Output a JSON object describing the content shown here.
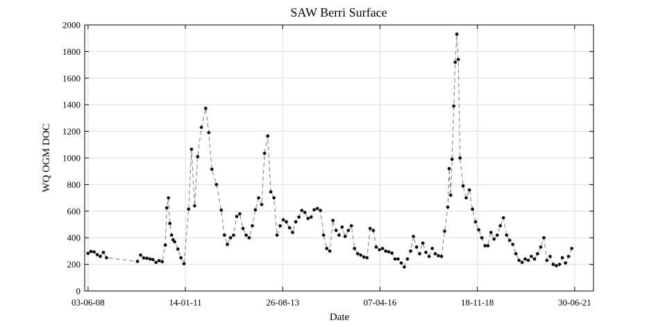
{
  "chart_data": {
    "type": "line",
    "title": "SAW Berri Surface",
    "xlabel": "Date",
    "ylabel": "WQ OGM DOC",
    "x_is_date": true,
    "xlim": [
      "2008-05-01",
      "2022-01-01"
    ],
    "ylim": [
      0,
      2000
    ],
    "grid": true,
    "line_style": "dashed",
    "marker": "filled-circle",
    "x_ticks": [
      {
        "date": "2008-06-03",
        "label": "03-06-08"
      },
      {
        "date": "2011-01-14",
        "label": "14-01-11"
      },
      {
        "date": "2013-08-26",
        "label": "26-08-13"
      },
      {
        "date": "2016-04-07",
        "label": "07-04-16"
      },
      {
        "date": "2018-11-18",
        "label": "18-11-18"
      },
      {
        "date": "2021-06-30",
        "label": "30-06-21"
      }
    ],
    "y_ticks": [
      0,
      200,
      400,
      600,
      800,
      1000,
      1200,
      1400,
      1600,
      1800,
      2000
    ],
    "series": [
      {
        "color": "#000000",
        "points": [
          [
            "2008-06-03",
            283
          ],
          [
            "2008-07-01",
            297
          ],
          [
            "2008-08-01",
            294
          ],
          [
            "2008-09-01",
            273
          ],
          [
            "2008-10-01",
            260
          ],
          [
            "2008-11-01",
            290
          ],
          [
            "2008-12-01",
            250
          ],
          [
            "2009-10-01",
            222
          ],
          [
            "2009-11-01",
            270
          ],
          [
            "2009-12-01",
            248
          ],
          [
            "2010-01-01",
            246
          ],
          [
            "2010-02-01",
            240
          ],
          [
            "2010-03-01",
            236
          ],
          [
            "2010-04-01",
            215
          ],
          [
            "2010-05-01",
            228
          ],
          [
            "2010-06-01",
            220
          ],
          [
            "2010-07-01",
            345
          ],
          [
            "2010-07-15",
            625
          ],
          [
            "2010-08-01",
            700
          ],
          [
            "2010-08-15",
            508
          ],
          [
            "2010-09-01",
            420
          ],
          [
            "2010-09-15",
            385
          ],
          [
            "2010-10-01",
            370
          ],
          [
            "2010-11-01",
            315
          ],
          [
            "2010-12-01",
            250
          ],
          [
            "2011-01-01",
            205
          ],
          [
            "2011-02-15",
            615
          ],
          [
            "2011-03-15",
            1065
          ],
          [
            "2011-04-15",
            640
          ],
          [
            "2011-05-15",
            1010
          ],
          [
            "2011-06-20",
            1230
          ],
          [
            "2011-08-01",
            1373
          ],
          [
            "2011-09-01",
            1190
          ],
          [
            "2011-10-01",
            915
          ],
          [
            "2011-11-15",
            800
          ],
          [
            "2012-01-01",
            608
          ],
          [
            "2012-02-01",
            420
          ],
          [
            "2012-03-01",
            350
          ],
          [
            "2012-04-01",
            400
          ],
          [
            "2012-05-01",
            420
          ],
          [
            "2012-06-01",
            560
          ],
          [
            "2012-07-01",
            580
          ],
          [
            "2012-08-01",
            470
          ],
          [
            "2012-09-01",
            420
          ],
          [
            "2012-10-01",
            400
          ],
          [
            "2012-11-01",
            490
          ],
          [
            "2012-12-01",
            610
          ],
          [
            "2013-01-01",
            700
          ],
          [
            "2013-02-01",
            650
          ],
          [
            "2013-03-01",
            1035
          ],
          [
            "2013-04-01",
            1165
          ],
          [
            "2013-05-01",
            745
          ],
          [
            "2013-06-01",
            700
          ],
          [
            "2013-07-01",
            420
          ],
          [
            "2013-08-01",
            490
          ],
          [
            "2013-09-01",
            535
          ],
          [
            "2013-10-01",
            520
          ],
          [
            "2013-11-01",
            475
          ],
          [
            "2013-12-01",
            440
          ],
          [
            "2014-01-01",
            520
          ],
          [
            "2014-02-01",
            555
          ],
          [
            "2014-03-01",
            605
          ],
          [
            "2014-04-01",
            590
          ],
          [
            "2014-05-01",
            545
          ],
          [
            "2014-06-01",
            555
          ],
          [
            "2014-07-01",
            610
          ],
          [
            "2014-08-01",
            620
          ],
          [
            "2014-09-01",
            605
          ],
          [
            "2014-10-01",
            420
          ],
          [
            "2014-11-01",
            320
          ],
          [
            "2014-12-01",
            300
          ],
          [
            "2015-01-01",
            530
          ],
          [
            "2015-02-01",
            455
          ],
          [
            "2015-03-01",
            420
          ],
          [
            "2015-04-01",
            480
          ],
          [
            "2015-05-01",
            410
          ],
          [
            "2015-06-01",
            455
          ],
          [
            "2015-07-01",
            490
          ],
          [
            "2015-08-01",
            320
          ],
          [
            "2015-09-01",
            280
          ],
          [
            "2015-10-01",
            270
          ],
          [
            "2015-11-01",
            255
          ],
          [
            "2015-12-01",
            250
          ],
          [
            "2016-01-01",
            470
          ],
          [
            "2016-02-01",
            455
          ],
          [
            "2016-03-01",
            330
          ],
          [
            "2016-04-01",
            310
          ],
          [
            "2016-05-01",
            320
          ],
          [
            "2016-06-01",
            300
          ],
          [
            "2016-07-01",
            295
          ],
          [
            "2016-08-01",
            285
          ],
          [
            "2016-09-01",
            240
          ],
          [
            "2016-10-01",
            240
          ],
          [
            "2016-11-01",
            210
          ],
          [
            "2016-12-01",
            180
          ],
          [
            "2017-01-01",
            240
          ],
          [
            "2017-02-01",
            300
          ],
          [
            "2017-03-01",
            410
          ],
          [
            "2017-04-01",
            330
          ],
          [
            "2017-05-01",
            280
          ],
          [
            "2017-06-01",
            360
          ],
          [
            "2017-07-01",
            290
          ],
          [
            "2017-08-01",
            260
          ],
          [
            "2017-09-01",
            320
          ],
          [
            "2017-10-01",
            280
          ],
          [
            "2017-11-01",
            265
          ],
          [
            "2017-12-01",
            260
          ],
          [
            "2018-01-01",
            450
          ],
          [
            "2018-02-01",
            630
          ],
          [
            "2018-02-15",
            920
          ],
          [
            "2018-03-01",
            720
          ],
          [
            "2018-03-15",
            990
          ],
          [
            "2018-04-01",
            1390
          ],
          [
            "2018-04-15",
            1720
          ],
          [
            "2018-05-01",
            1930
          ],
          [
            "2018-05-15",
            1740
          ],
          [
            "2018-06-01",
            1000
          ],
          [
            "2018-07-01",
            790
          ],
          [
            "2018-08-01",
            700
          ],
          [
            "2018-09-01",
            760
          ],
          [
            "2018-10-01",
            615
          ],
          [
            "2018-11-01",
            520
          ],
          [
            "2018-12-01",
            460
          ],
          [
            "2019-01-01",
            400
          ],
          [
            "2019-02-01",
            340
          ],
          [
            "2019-03-01",
            340
          ],
          [
            "2019-04-01",
            440
          ],
          [
            "2019-05-01",
            390
          ],
          [
            "2019-06-01",
            420
          ],
          [
            "2019-07-01",
            490
          ],
          [
            "2019-08-01",
            550
          ],
          [
            "2019-09-01",
            420
          ],
          [
            "2019-10-01",
            380
          ],
          [
            "2019-11-01",
            350
          ],
          [
            "2019-12-01",
            280
          ],
          [
            "2020-01-01",
            230
          ],
          [
            "2020-02-01",
            215
          ],
          [
            "2020-03-01",
            240
          ],
          [
            "2020-04-01",
            230
          ],
          [
            "2020-05-01",
            260
          ],
          [
            "2020-06-01",
            240
          ],
          [
            "2020-07-01",
            280
          ],
          [
            "2020-08-01",
            330
          ],
          [
            "2020-09-01",
            400
          ],
          [
            "2020-10-01",
            230
          ],
          [
            "2020-11-01",
            260
          ],
          [
            "2020-12-01",
            200
          ],
          [
            "2021-01-01",
            190
          ],
          [
            "2021-02-01",
            200
          ],
          [
            "2021-03-01",
            250
          ],
          [
            "2021-04-01",
            210
          ],
          [
            "2021-05-01",
            260
          ],
          [
            "2021-06-01",
            320
          ]
        ]
      }
    ]
  }
}
